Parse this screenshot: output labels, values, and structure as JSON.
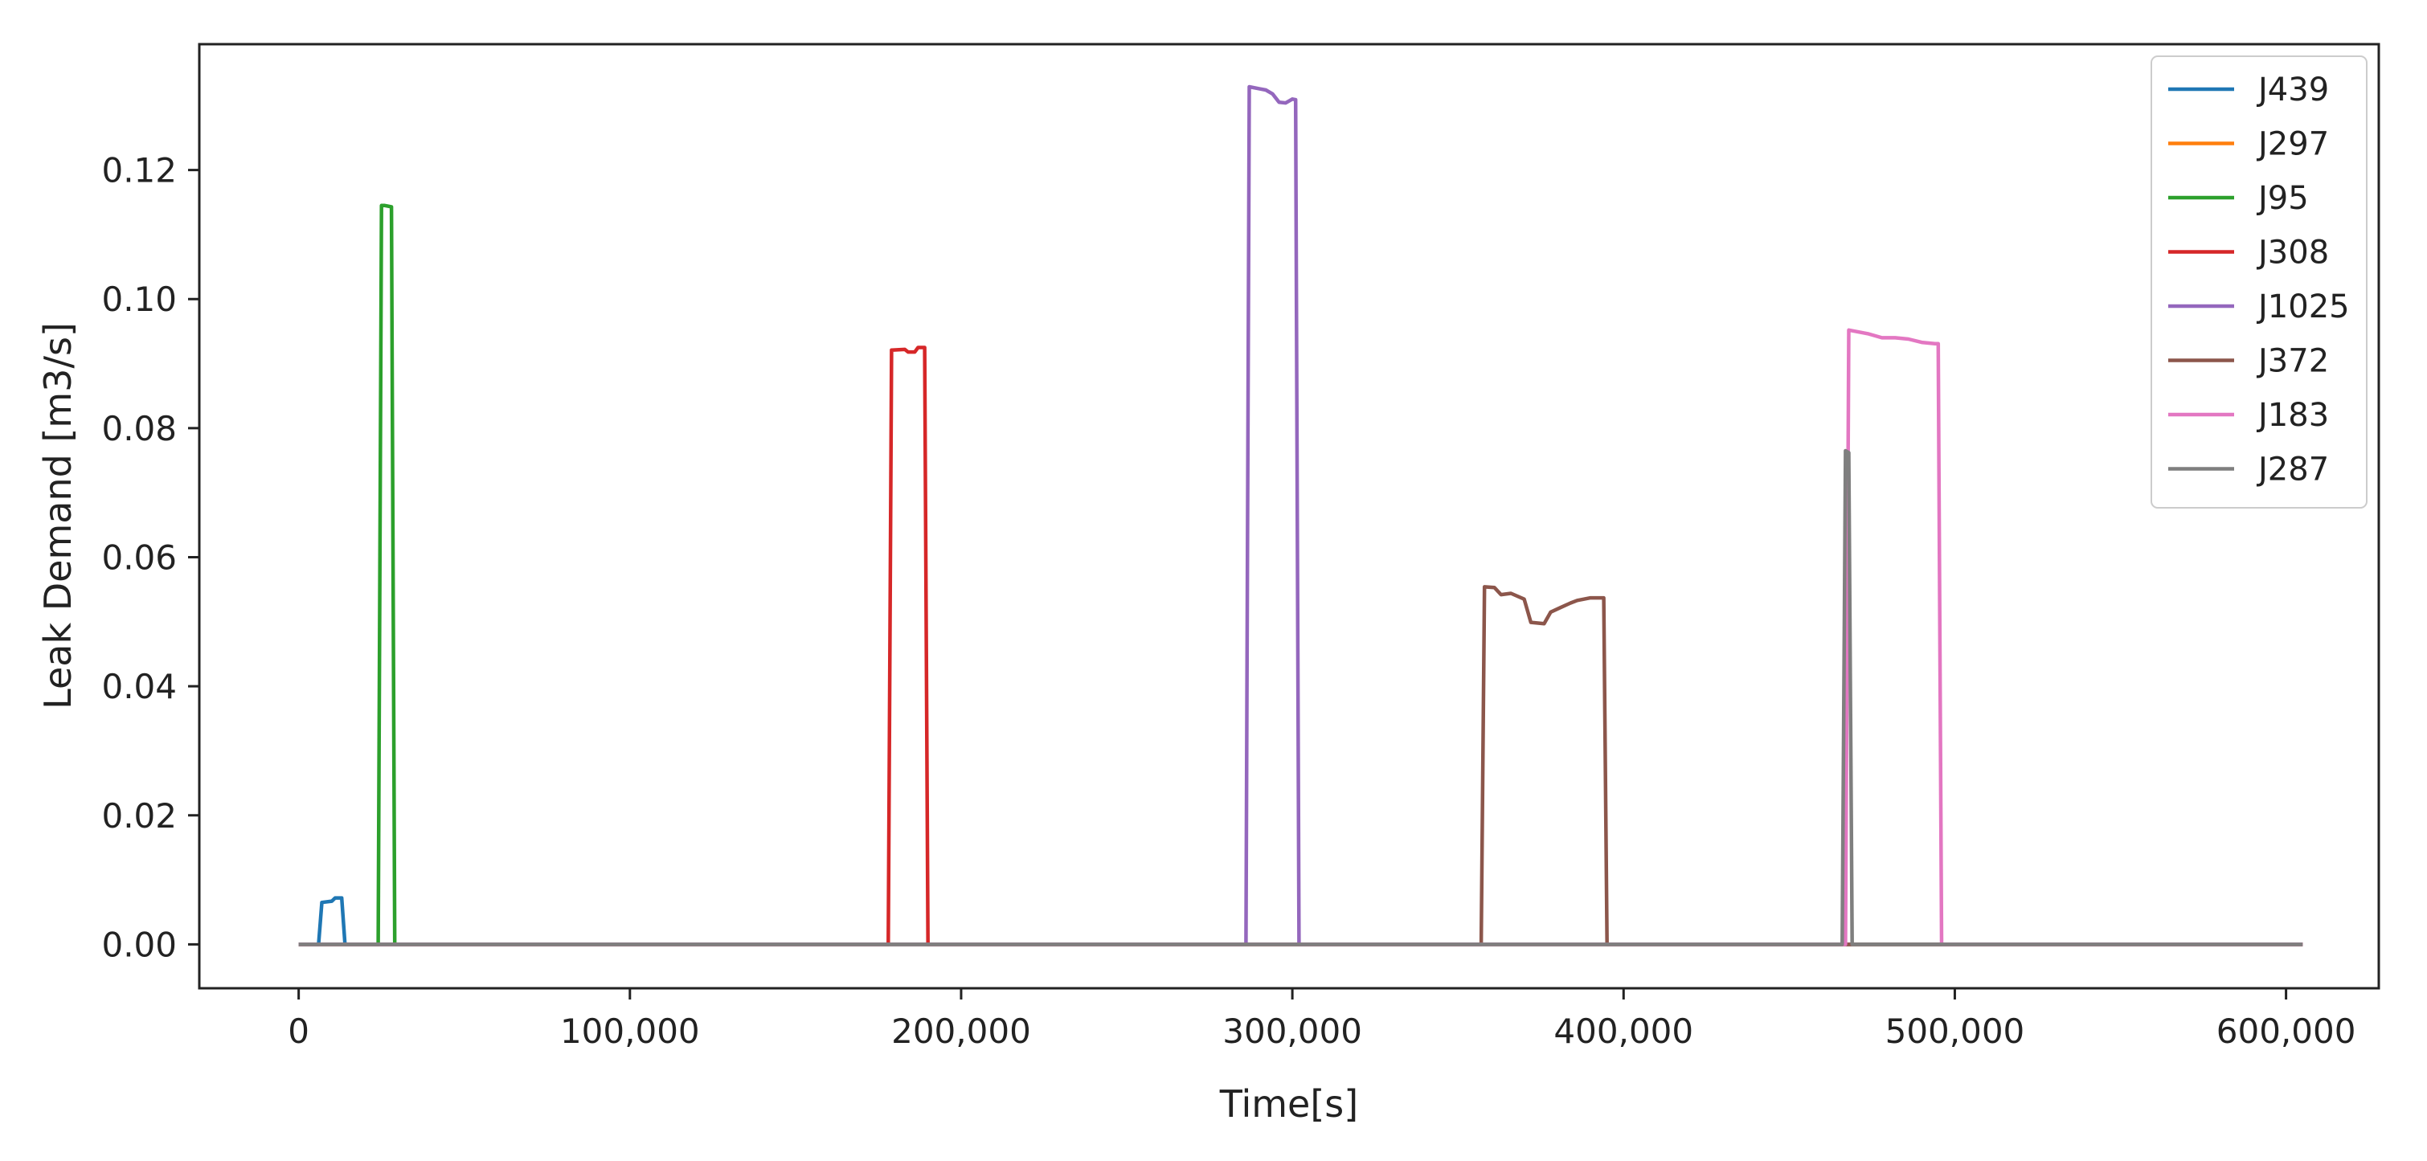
{
  "chart_data": {
    "type": "line",
    "title": "",
    "xlabel": "Time[s]",
    "ylabel": "Leak Demand [m3/s]",
    "xlim": [
      -30000,
      628000
    ],
    "ylim": [
      -0.0068,
      0.1395
    ],
    "xticks": [
      0,
      100000,
      200000,
      300000,
      400000,
      500000,
      600000
    ],
    "xtick_labels": [
      "0",
      "100,000",
      "200,000",
      "300,000",
      "400,000",
      "500,000",
      "600,000"
    ],
    "yticks": [
      0.0,
      0.02,
      0.04,
      0.06,
      0.08,
      0.1,
      0.12
    ],
    "ytick_labels": [
      "0.00",
      "0.02",
      "0.04",
      "0.06",
      "0.08",
      "0.10",
      "0.12"
    ],
    "grid": false,
    "legend_position": "top-right",
    "series": [
      {
        "name": "J439",
        "color": "#1f77b4",
        "x": [
          0,
          6000,
          7000,
          10000,
          11000,
          13000,
          14000,
          605000
        ],
        "y": [
          0,
          0,
          0.0065,
          0.0067,
          0.0072,
          0.0072,
          0,
          0
        ]
      },
      {
        "name": "J297",
        "color": "#ff7f0e",
        "x": [
          0,
          605000
        ],
        "y": [
          0,
          0
        ]
      },
      {
        "name": "J95",
        "color": "#2ca02c",
        "x": [
          0,
          24000,
          25000,
          26000,
          28000,
          29000,
          605000
        ],
        "y": [
          0,
          0,
          0.1145,
          0.1145,
          0.1143,
          0,
          0
        ]
      },
      {
        "name": "J308",
        "color": "#d62728",
        "x": [
          0,
          178000,
          179000,
          183000,
          184000,
          186000,
          187000,
          189000,
          190000,
          605000
        ],
        "y": [
          0,
          0,
          0.0921,
          0.0922,
          0.0918,
          0.0918,
          0.0925,
          0.0925,
          0,
          0
        ]
      },
      {
        "name": "J1025",
        "color": "#9467bd",
        "x": [
          0,
          286000,
          287000,
          290000,
          292000,
          294000,
          296000,
          298000,
          300000,
          301000,
          302000,
          605000
        ],
        "y": [
          0,
          0,
          0.1329,
          0.1326,
          0.1324,
          0.1318,
          0.1305,
          0.1304,
          0.131,
          0.1309,
          0,
          0
        ]
      },
      {
        "name": "J372",
        "color": "#8c564b",
        "x": [
          0,
          357000,
          358000,
          361000,
          363000,
          366000,
          370000,
          372000,
          376000,
          378000,
          381000,
          384000,
          386000,
          390000,
          394000,
          395000,
          605000
        ],
        "y": [
          0,
          0,
          0.0554,
          0.0553,
          0.0542,
          0.0544,
          0.0535,
          0.0499,
          0.0497,
          0.0515,
          0.0522,
          0.0529,
          0.0533,
          0.0537,
          0.0537,
          0,
          0
        ]
      },
      {
        "name": "J183",
        "color": "#e377c2",
        "x": [
          0,
          467000,
          468000,
          471000,
          474000,
          478000,
          482000,
          486000,
          490000,
          494000,
          495000,
          496000,
          605000
        ],
        "y": [
          0,
          0,
          0.0952,
          0.0949,
          0.0946,
          0.094,
          0.094,
          0.0938,
          0.0933,
          0.0931,
          0.0931,
          0,
          0
        ]
      },
      {
        "name": "J287",
        "color": "#7f7f7f",
        "x": [
          0,
          466000,
          467000,
          468000,
          469000,
          605000
        ],
        "y": [
          0,
          0,
          0.0765,
          0.0762,
          0,
          0
        ]
      }
    ]
  }
}
